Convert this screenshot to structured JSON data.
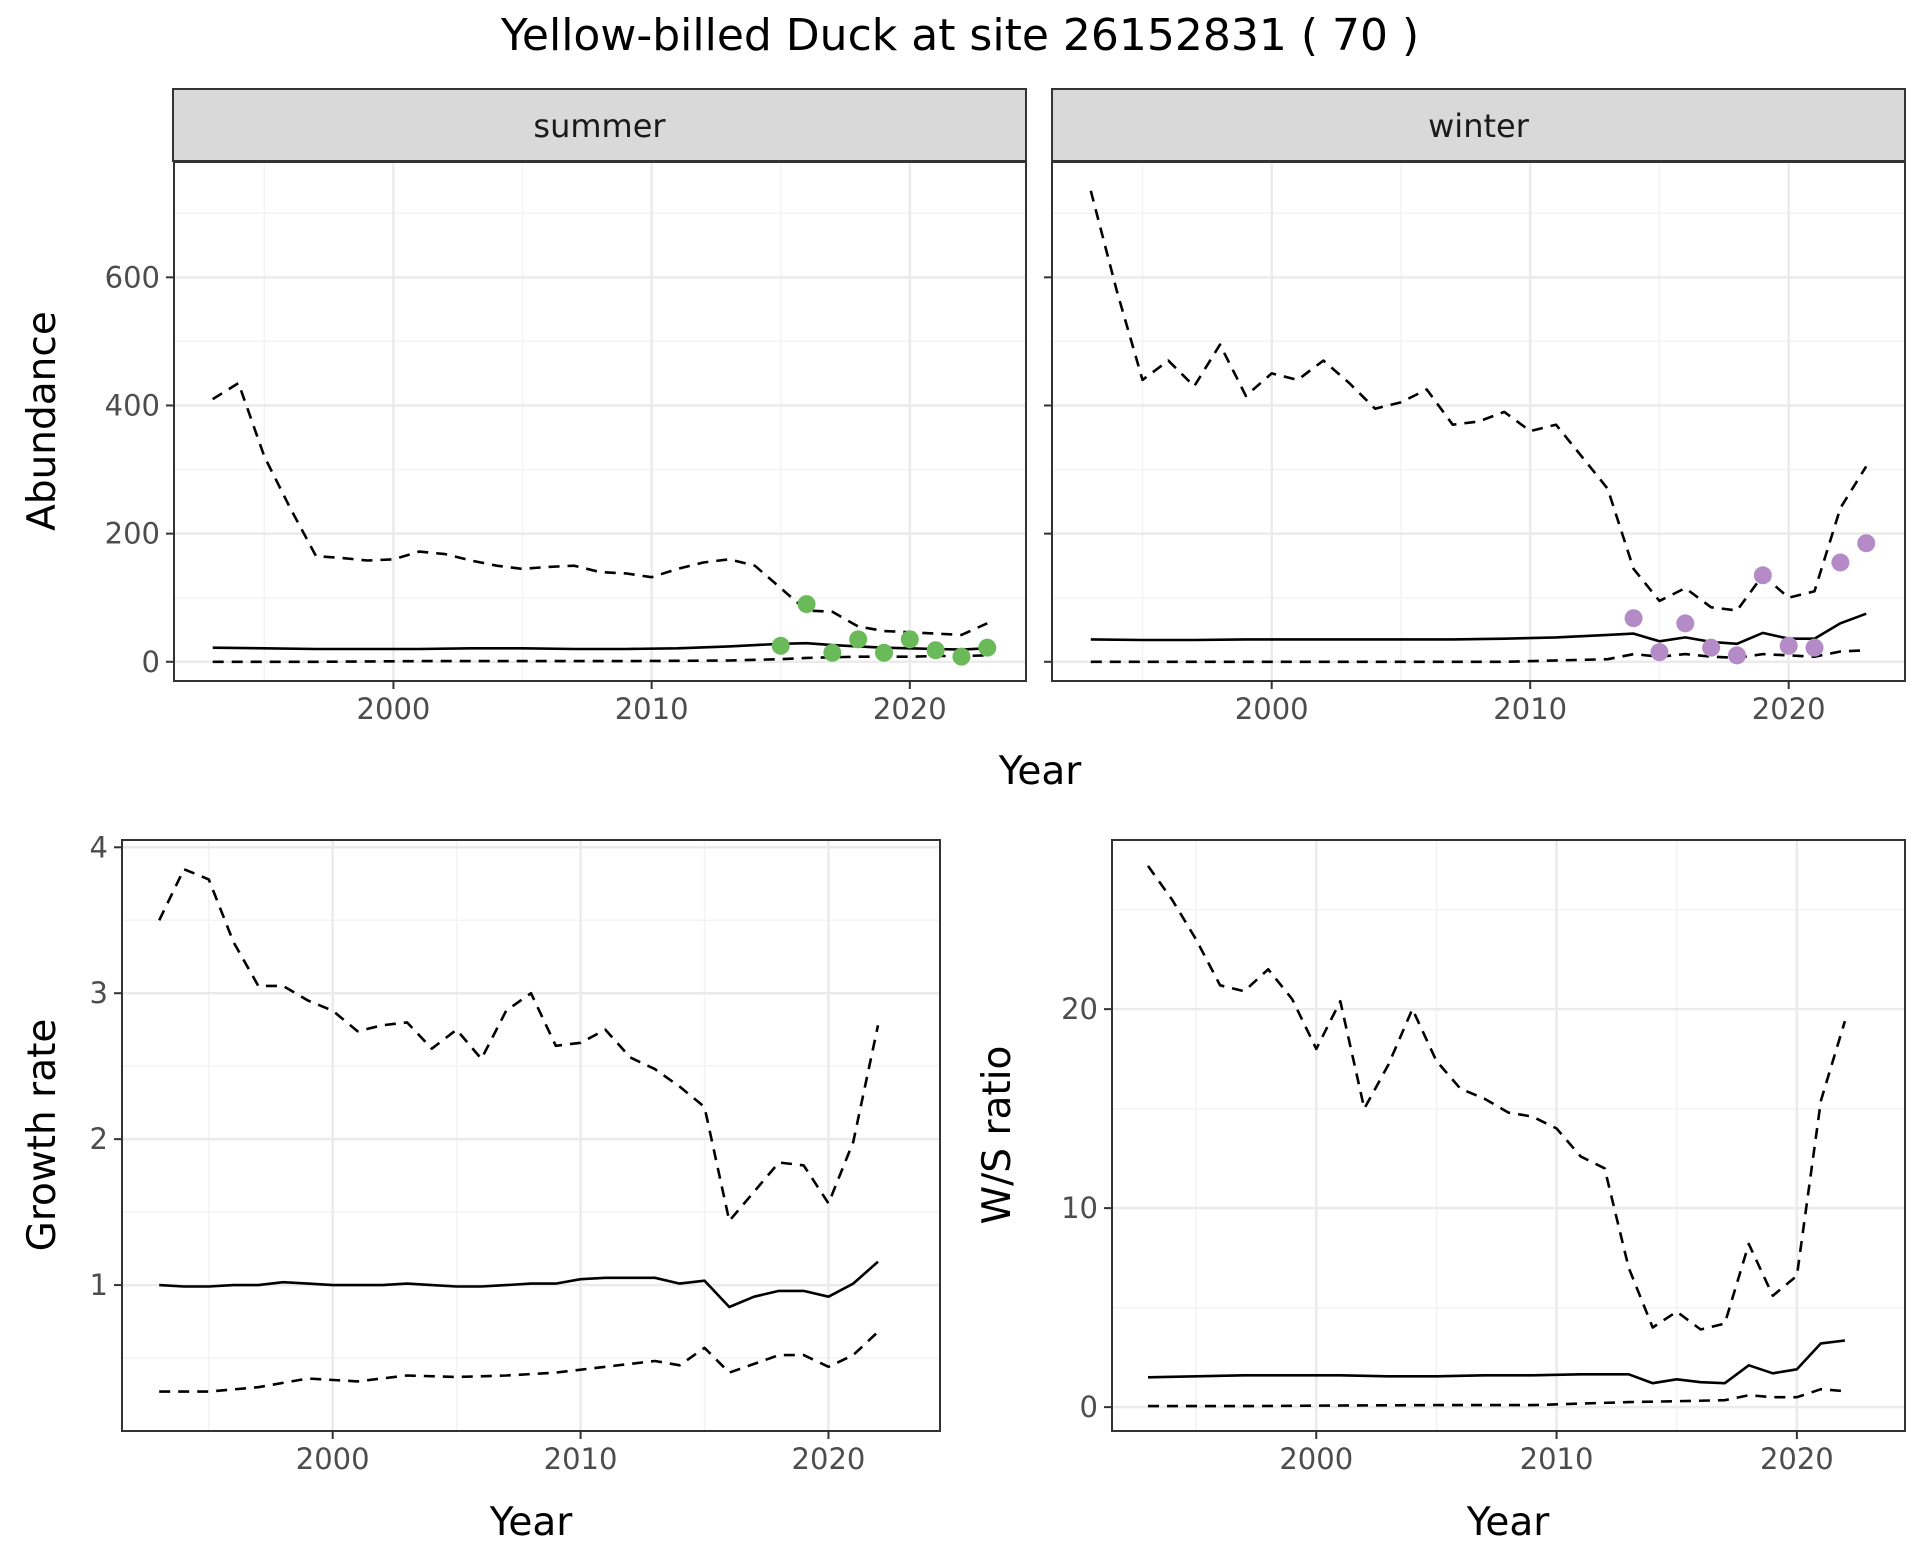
{
  "title": "Yellow-billed Duck at site 26152831 ( 70 )",
  "colors": {
    "summer_points": "#6aba5a",
    "winter_points": "#b48bc7",
    "line": "#000000",
    "grid_major": "#ebebeb",
    "grid_minor": "#f3f3f3",
    "strip": "#d9d9d9"
  },
  "chart_data": [
    {
      "type": "line",
      "panel": "abundance-summer",
      "strip_label": "summer",
      "ylabel": "Abundance",
      "xlabel": "Year",
      "xlim": [
        1991.5,
        2024.5
      ],
      "ylim": [
        -30,
        780
      ],
      "xticks": [
        2000,
        2010,
        2020
      ],
      "yticks": [
        0,
        200,
        400,
        600
      ],
      "ytick_labels": [
        "0",
        "200",
        "400",
        "600"
      ],
      "grid": true,
      "series": [
        {
          "role": "estimate",
          "style": "solid",
          "x": [
            1993,
            1995,
            1997,
            1999,
            2001,
            2003,
            2005,
            2007,
            2009,
            2011,
            2013,
            2015,
            2016,
            2017,
            2018,
            2019,
            2020,
            2021,
            2022,
            2023
          ],
          "y": [
            22,
            21,
            20,
            20,
            20,
            21,
            21,
            20,
            20,
            21,
            24,
            28,
            29,
            26,
            24,
            22,
            21,
            20,
            19,
            21
          ]
        },
        {
          "role": "upper",
          "style": "dashed",
          "x": [
            1993,
            1994,
            1995,
            1996,
            1997,
            1998,
            1999,
            2000,
            2001,
            2002,
            2003,
            2004,
            2005,
            2006,
            2007,
            2008,
            2009,
            2010,
            2011,
            2012,
            2013,
            2014,
            2015,
            2016,
            2017,
            2018,
            2019,
            2020,
            2021,
            2022,
            2023
          ],
          "y": [
            410,
            435,
            320,
            240,
            165,
            162,
            158,
            160,
            172,
            168,
            158,
            150,
            145,
            148,
            150,
            140,
            138,
            132,
            145,
            155,
            160,
            150,
            115,
            80,
            78,
            55,
            48,
            46,
            44,
            42,
            60
          ]
        },
        {
          "role": "lower",
          "style": "dashed",
          "x": [
            1993,
            1997,
            2001,
            2005,
            2009,
            2013,
            2015,
            2016,
            2017,
            2018,
            2019,
            2020,
            2021,
            2022,
            2023
          ],
          "y": [
            0,
            0,
            1,
            1,
            1,
            2,
            4,
            6,
            7,
            8,
            8,
            8,
            9,
            9,
            10
          ]
        },
        {
          "role": "observed",
          "style": "points",
          "x": [
            2015,
            2016,
            2017,
            2018,
            2019,
            2020,
            2021,
            2022,
            2023
          ],
          "y": [
            25,
            90,
            14,
            35,
            14,
            35,
            18,
            8,
            22
          ]
        }
      ]
    },
    {
      "type": "line",
      "panel": "abundance-winter",
      "strip_label": "winter",
      "xlabel": "Year",
      "xlim": [
        1991.5,
        2024.5
      ],
      "ylim": [
        -30,
        780
      ],
      "xticks": [
        2000,
        2010,
        2020
      ],
      "grid": true,
      "series": [
        {
          "role": "estimate",
          "style": "solid",
          "x": [
            1993,
            1995,
            1997,
            1999,
            2001,
            2003,
            2005,
            2007,
            2009,
            2011,
            2013,
            2014,
            2015,
            2016,
            2017,
            2018,
            2019,
            2020,
            2021,
            2022,
            2023
          ],
          "y": [
            35,
            34,
            34,
            35,
            35,
            35,
            35,
            35,
            36,
            38,
            42,
            44,
            32,
            38,
            31,
            28,
            45,
            36,
            36,
            60,
            75
          ]
        },
        {
          "role": "upper",
          "style": "dashed",
          "x": [
            1993,
            1994,
            1995,
            1996,
            1997,
            1998,
            1999,
            2000,
            2001,
            2002,
            2003,
            2004,
            2005,
            2006,
            2007,
            2008,
            2009,
            2010,
            2011,
            2012,
            2013,
            2014,
            2015,
            2016,
            2017,
            2018,
            2019,
            2020,
            2021,
            2022,
            2023
          ],
          "y": [
            735,
            580,
            440,
            470,
            430,
            495,
            415,
            450,
            440,
            470,
            435,
            395,
            405,
            425,
            370,
            375,
            390,
            360,
            370,
            320,
            270,
            145,
            95,
            115,
            85,
            80,
            135,
            100,
            110,
            240,
            305
          ]
        },
        {
          "role": "lower",
          "style": "dashed",
          "x": [
            1993,
            1997,
            2001,
            2005,
            2009,
            2013,
            2014,
            2015,
            2016,
            2017,
            2018,
            2019,
            2020,
            2021,
            2022,
            2023
          ],
          "y": [
            0,
            0,
            0,
            0,
            0,
            4,
            12,
            8,
            12,
            8,
            6,
            12,
            10,
            8,
            16,
            18
          ]
        },
        {
          "role": "observed",
          "style": "points",
          "x": [
            2014,
            2015,
            2016,
            2017,
            2018,
            2019,
            2020,
            2021,
            2022,
            2023
          ],
          "y": [
            68,
            15,
            60,
            22,
            10,
            135,
            25,
            22,
            155,
            185
          ]
        }
      ]
    },
    {
      "type": "line",
      "panel": "growth-rate",
      "ylabel": "Growth rate",
      "xlabel": "Year",
      "xlim": [
        1991.5,
        2024.5
      ],
      "ylim": [
        0.0,
        4.05
      ],
      "xticks": [
        2000,
        2010,
        2020
      ],
      "yticks": [
        1,
        2,
        3,
        4
      ],
      "ytick_labels": [
        "1",
        "2",
        "3",
        "4"
      ],
      "grid": true,
      "series": [
        {
          "role": "estimate",
          "style": "solid",
          "x": [
            1993,
            1994,
            1995,
            1996,
            1997,
            1998,
            1999,
            2000,
            2001,
            2002,
            2003,
            2004,
            2005,
            2006,
            2007,
            2008,
            2009,
            2010,
            2011,
            2012,
            2013,
            2014,
            2015,
            2016,
            2017,
            2018,
            2019,
            2020,
            2021,
            2022
          ],
          "y": [
            1.0,
            0.99,
            0.99,
            1.0,
            1.0,
            1.02,
            1.01,
            1.0,
            1.0,
            1.0,
            1.01,
            1.0,
            0.99,
            0.99,
            1.0,
            1.01,
            1.01,
            1.04,
            1.05,
            1.05,
            1.05,
            1.01,
            1.03,
            0.85,
            0.92,
            0.96,
            0.96,
            0.92,
            1.01,
            1.16
          ]
        },
        {
          "role": "upper",
          "style": "dashed",
          "x": [
            1993,
            1994,
            1995,
            1996,
            1997,
            1998,
            1999,
            2000,
            2001,
            2002,
            2003,
            2004,
            2005,
            2006,
            2007,
            2008,
            2009,
            2010,
            2011,
            2012,
            2013,
            2014,
            2015,
            2016,
            2017,
            2018,
            2019,
            2020,
            2021,
            2022
          ],
          "y": [
            3.5,
            3.85,
            3.78,
            3.35,
            3.05,
            3.05,
            2.95,
            2.88,
            2.74,
            2.78,
            2.8,
            2.62,
            2.75,
            2.55,
            2.88,
            3.0,
            2.64,
            2.66,
            2.75,
            2.56,
            2.48,
            2.36,
            2.22,
            1.44,
            1.64,
            1.84,
            1.82,
            1.56,
            1.98,
            2.78
          ]
        },
        {
          "role": "lower",
          "style": "dashed",
          "x": [
            1993,
            1995,
            1997,
            1999,
            2001,
            2003,
            2005,
            2007,
            2009,
            2011,
            2013,
            2014,
            2015,
            2016,
            2017,
            2018,
            2019,
            2020,
            2021,
            2022
          ],
          "y": [
            0.27,
            0.27,
            0.3,
            0.36,
            0.34,
            0.38,
            0.37,
            0.38,
            0.4,
            0.44,
            0.48,
            0.45,
            0.57,
            0.4,
            0.46,
            0.52,
            0.52,
            0.44,
            0.52,
            0.68
          ]
        }
      ]
    },
    {
      "type": "line",
      "panel": "ws-ratio",
      "ylabel": "W/S ratio",
      "xlabel": "Year",
      "xlim": [
        1991.5,
        2024.5
      ],
      "ylim": [
        -1.2,
        28.5
      ],
      "xticks": [
        2000,
        2010,
        2020
      ],
      "yticks": [
        0,
        10,
        20
      ],
      "ytick_labels": [
        "0",
        "10",
        "20"
      ],
      "grid": true,
      "series": [
        {
          "role": "estimate",
          "style": "solid",
          "x": [
            1993,
            1995,
            1997,
            1999,
            2001,
            2003,
            2005,
            2007,
            2009,
            2011,
            2013,
            2014,
            2015,
            2016,
            2017,
            2018,
            2019,
            2020,
            2021,
            2022
          ],
          "y": [
            1.5,
            1.55,
            1.6,
            1.6,
            1.6,
            1.55,
            1.55,
            1.6,
            1.6,
            1.65,
            1.65,
            1.2,
            1.4,
            1.25,
            1.2,
            2.1,
            1.7,
            1.9,
            3.2,
            3.35
          ]
        },
        {
          "role": "upper",
          "style": "dashed",
          "x": [
            1993,
            1994,
            1995,
            1996,
            1997,
            1998,
            1999,
            2000,
            2001,
            2002,
            2003,
            2004,
            2005,
            2006,
            2007,
            2008,
            2009,
            2010,
            2011,
            2012,
            2013,
            2014,
            2015,
            2016,
            2017,
            2018,
            2019,
            2020,
            2021,
            2022
          ],
          "y": [
            27.2,
            25.5,
            23.5,
            21.2,
            20.9,
            22.0,
            20.5,
            18.0,
            20.4,
            15.0,
            17.2,
            20.0,
            17.4,
            16.0,
            15.5,
            14.8,
            14.6,
            14.0,
            12.6,
            12.0,
            7.0,
            4.0,
            4.8,
            3.9,
            4.2,
            8.2,
            5.6,
            6.6,
            15.4,
            19.4
          ]
        },
        {
          "role": "lower",
          "style": "dashed",
          "x": [
            1993,
            1997,
            2001,
            2005,
            2009,
            2013,
            2015,
            2017,
            2018,
            2019,
            2020,
            2021,
            2022
          ],
          "y": [
            0.05,
            0.05,
            0.08,
            0.1,
            0.1,
            0.25,
            0.3,
            0.35,
            0.6,
            0.5,
            0.5,
            0.9,
            0.8
          ]
        }
      ]
    }
  ]
}
